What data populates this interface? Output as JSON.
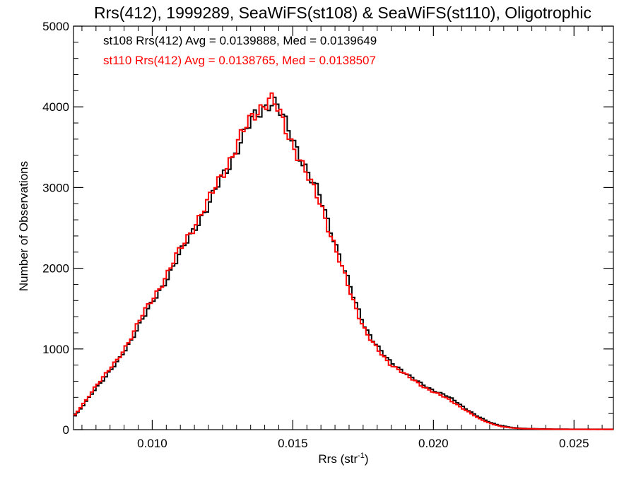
{
  "chart_data": {
    "type": "line",
    "subtype": "step-histogram",
    "title": "Rrs(412), 1999289, SeaWiFS(st108) & SeaWiFS(st110), Oligotrophic",
    "xlabel_main": "Rrs (str",
    "xlabel_sup": "-1",
    "xlabel_close": ")",
    "ylabel": "Number of Observations",
    "xlim": [
      0.0072,
      0.0264
    ],
    "ylim": [
      0,
      5000
    ],
    "xticks": [
      0.01,
      0.015,
      0.02,
      0.025
    ],
    "xtick_labels": [
      "0.010",
      "0.015",
      "0.020",
      "0.025"
    ],
    "yticks": [
      0,
      1000,
      2000,
      3000,
      4000,
      5000
    ],
    "ytick_labels": [
      "0",
      "1000",
      "2000",
      "3000",
      "4000",
      "5000"
    ],
    "grid": false,
    "annotations": [
      {
        "text": "st108 Rrs(412) Avg = 0.0139888, Med = 0.0139649",
        "color": "#000000"
      },
      {
        "text": "st110 Rrs(412) Avg = 0.0138765, Med = 0.0138507",
        "color": "#ff0000"
      }
    ],
    "series": [
      {
        "color": "#000000",
        "x": [
          0.0072,
          0.0076,
          0.008,
          0.0084,
          0.0088,
          0.0092,
          0.0096,
          0.01,
          0.0104,
          0.0108,
          0.0112,
          0.0116,
          0.012,
          0.0124,
          0.0128,
          0.0132,
          0.0136,
          0.014,
          0.0142,
          0.0144,
          0.0148,
          0.0152,
          0.0156,
          0.016,
          0.0164,
          0.0168,
          0.0172,
          0.0176,
          0.018,
          0.0184,
          0.0188,
          0.0192,
          0.0196,
          0.02,
          0.0204,
          0.0208,
          0.0212,
          0.0216,
          0.022,
          0.0224,
          0.0228,
          0.0232,
          0.024,
          0.025,
          0.0264
        ],
        "y": [
          150,
          320,
          520,
          680,
          850,
          1080,
          1340,
          1560,
          1800,
          2060,
          2300,
          2560,
          2780,
          3060,
          3330,
          3610,
          3850,
          4010,
          4080,
          4040,
          3740,
          3460,
          3130,
          2860,
          2440,
          2010,
          1600,
          1260,
          1030,
          860,
          760,
          650,
          560,
          490,
          430,
          350,
          250,
          160,
          90,
          50,
          25,
          15,
          8,
          5,
          5
        ]
      },
      {
        "color": "#ff0000",
        "x": [
          0.0072,
          0.0076,
          0.008,
          0.0084,
          0.0088,
          0.0092,
          0.0096,
          0.01,
          0.0104,
          0.0108,
          0.0112,
          0.0116,
          0.012,
          0.0124,
          0.0128,
          0.0132,
          0.0136,
          0.014,
          0.0142,
          0.0144,
          0.0148,
          0.0152,
          0.0156,
          0.016,
          0.0164,
          0.0168,
          0.0172,
          0.0176,
          0.018,
          0.0184,
          0.0188,
          0.0192,
          0.0196,
          0.02,
          0.0204,
          0.0208,
          0.0212,
          0.0216,
          0.022,
          0.0224,
          0.0228,
          0.0232,
          0.024,
          0.025,
          0.0264
        ],
        "y": [
          160,
          340,
          550,
          710,
          880,
          1120,
          1390,
          1610,
          1850,
          2110,
          2350,
          2600,
          2830,
          3110,
          3380,
          3660,
          3900,
          4060,
          4110,
          4000,
          3680,
          3400,
          3070,
          2790,
          2370,
          1940,
          1540,
          1210,
          990,
          830,
          740,
          630,
          540,
          470,
          400,
          320,
          230,
          140,
          80,
          40,
          20,
          12,
          6,
          4,
          4
        ]
      }
    ]
  }
}
